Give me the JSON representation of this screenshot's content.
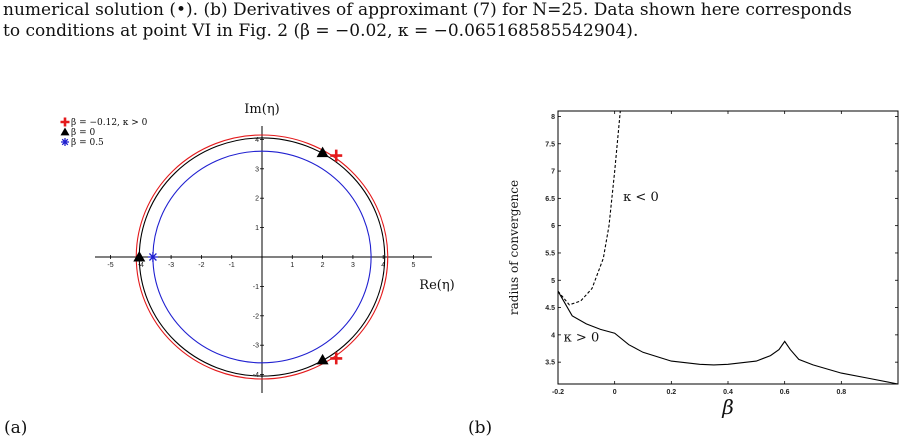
{
  "caption": {
    "line1": "numerical solution (•). (b) Derivatives of approximant (7) for N=25. Data shown here corresponds",
    "line2": "to conditions at point VI in Fig. 2 (β = −0.02, κ = −0.065168585542904)."
  },
  "panel_a_label": "(a)",
  "panel_b_label": "(b)",
  "chart_data": [
    {
      "type": "scatter",
      "panel": "a",
      "xlabel": "Re(η)",
      "ylabel": "Im(η)",
      "xlim": [
        -6,
        6
      ],
      "ylim": [
        -4.5,
        4.5
      ],
      "xticks": [
        -5,
        -4,
        -3,
        -2,
        -1,
        1,
        2,
        3,
        4,
        5
      ],
      "yticks": [
        -4,
        -3,
        -2,
        -1,
        1,
        2,
        3,
        4
      ],
      "circles": [
        {
          "name": "β = −0.12, κ > 0",
          "color": "#e41a1c",
          "radius": 4.15
        },
        {
          "name": "β = 0",
          "color": "#000000",
          "radius": 4.05
        },
        {
          "name": "β = 0.5",
          "color": "#1f1fd0",
          "radius": 3.6
        }
      ],
      "series": [
        {
          "name": "β = −0.12, κ > 0",
          "marker": "plus",
          "color": "#e41a1c",
          "points": [
            [
              2.45,
              3.45
            ],
            [
              2.45,
              -3.45
            ]
          ]
        },
        {
          "name": "β = 0",
          "marker": "triangle",
          "color": "#000000",
          "points": [
            [
              -4.05,
              0
            ],
            [
              2.0,
              3.55
            ],
            [
              2.0,
              -3.5
            ]
          ]
        },
        {
          "name": "β = 0.5",
          "marker": "asterisk",
          "color": "#1f1fd0",
          "points": [
            [
              -3.6,
              0
            ]
          ]
        }
      ],
      "legend": [
        {
          "label": "β = −0.12, κ > 0",
          "marker": "plus",
          "color": "#e41a1c"
        },
        {
          "label": "β = 0",
          "marker": "triangle",
          "color": "#000000"
        },
        {
          "label": "β = 0.5",
          "marker": "asterisk",
          "color": "#1f1fd0"
        }
      ],
      "legend_position": "top-left"
    },
    {
      "type": "line",
      "panel": "b",
      "xlabel": "β",
      "ylabel": "radius of convergence",
      "xlim": [
        -0.2,
        1.0
      ],
      "ylim": [
        3.1,
        8.1
      ],
      "xticks": [
        -0.2,
        0,
        0.2,
        0.4,
        0.6,
        0.8
      ],
      "xtick_labels": [
        "-0.2",
        "0",
        "0.2",
        "0.4",
        "0.6",
        "0.8"
      ],
      "yticks": [
        3.5,
        4,
        4.5,
        5,
        5.5,
        6,
        6.5,
        7,
        7.5,
        8
      ],
      "annotations": [
        {
          "text": "κ < 0",
          "x": 0.03,
          "y": 6.45
        },
        {
          "text": "κ > 0",
          "x": -0.18,
          "y": 3.88
        }
      ],
      "series": [
        {
          "style": "dashed",
          "color": "#000000",
          "x": [
            -0.2,
            -0.16,
            -0.12,
            -0.08,
            -0.04,
            -0.02,
            0.0,
            0.02
          ],
          "y": [
            4.8,
            4.55,
            4.62,
            4.85,
            5.4,
            6.0,
            7.0,
            8.1
          ]
        },
        {
          "style": "solid",
          "color": "#000000",
          "x": [
            -0.2,
            -0.15,
            -0.1,
            -0.05,
            0.0,
            0.05,
            0.1,
            0.2,
            0.3,
            0.35,
            0.4,
            0.5,
            0.55,
            0.58,
            0.6,
            0.62,
            0.65,
            0.7,
            0.8,
            0.9,
            1.0
          ],
          "y": [
            4.8,
            4.35,
            4.2,
            4.1,
            4.03,
            3.82,
            3.68,
            3.52,
            3.46,
            3.45,
            3.46,
            3.52,
            3.62,
            3.73,
            3.88,
            3.73,
            3.55,
            3.45,
            3.3,
            3.2,
            3.1
          ]
        }
      ]
    }
  ]
}
